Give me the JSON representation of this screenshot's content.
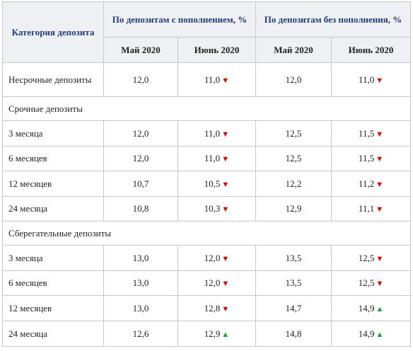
{
  "header": {
    "category": "Категория депозита",
    "group_with": "По депозитам с пополнением, %",
    "group_without": "По депозитам без пополнения, %",
    "may": "Май 2020",
    "june": "Июнь 2020"
  },
  "rows": [
    {
      "type": "row",
      "label": "Несрочные депозиты",
      "wm": "12,0",
      "wj": "11,0",
      "wa": "down",
      "om": "12,0",
      "oj": "11,0",
      "oa": "down"
    },
    {
      "type": "section",
      "label": "Срочные депозиты"
    },
    {
      "type": "row",
      "label": "3 месяца",
      "wm": "12,0",
      "wj": "11,0",
      "wa": "down",
      "om": "12,5",
      "oj": "11,5",
      "oa": "down"
    },
    {
      "type": "row",
      "label": "6 месяцев",
      "wm": "12,0",
      "wj": "11,0",
      "wa": "down",
      "om": "12,5",
      "oj": "11,5",
      "oa": "down"
    },
    {
      "type": "row",
      "label": "12 месяцев",
      "wm": "10,7",
      "wj": "10,5",
      "wa": "down",
      "om": "12,2",
      "oj": "11,2",
      "oa": "down"
    },
    {
      "type": "row",
      "label": "24 месяца",
      "wm": "10,8",
      "wj": "10,3",
      "wa": "down",
      "om": "12,9",
      "oj": "11,1",
      "oa": "down"
    },
    {
      "type": "section",
      "label": "Сберегательные  депозиты"
    },
    {
      "type": "row",
      "label": "3 месяца",
      "wm": "13,0",
      "wj": "12,0",
      "wa": "down",
      "om": "13,5",
      "oj": "12,5",
      "oa": "down"
    },
    {
      "type": "row",
      "label": "6 месяцев",
      "wm": "13,0",
      "wj": "12,0",
      "wa": "down",
      "om": "13,5",
      "oj": "12,5",
      "oa": "down"
    },
    {
      "type": "row",
      "label": "12 месяцев",
      "wm": "13,0",
      "wj": "12,8",
      "wa": "down",
      "om": "14,7",
      "oj": "14,9",
      "oa": "up"
    },
    {
      "type": "row",
      "label": "24 месяца",
      "wm": "12,6",
      "wj": "12,9",
      "wa": "up",
      "om": "14,8",
      "oj": "14,9",
      "oa": "up"
    }
  ],
  "icons": {
    "down": "triangle-down-icon",
    "up": "triangle-up-icon"
  },
  "colors": {
    "down": "#e10000",
    "up": "#14a33a",
    "header_text": "#1f3d7a"
  }
}
